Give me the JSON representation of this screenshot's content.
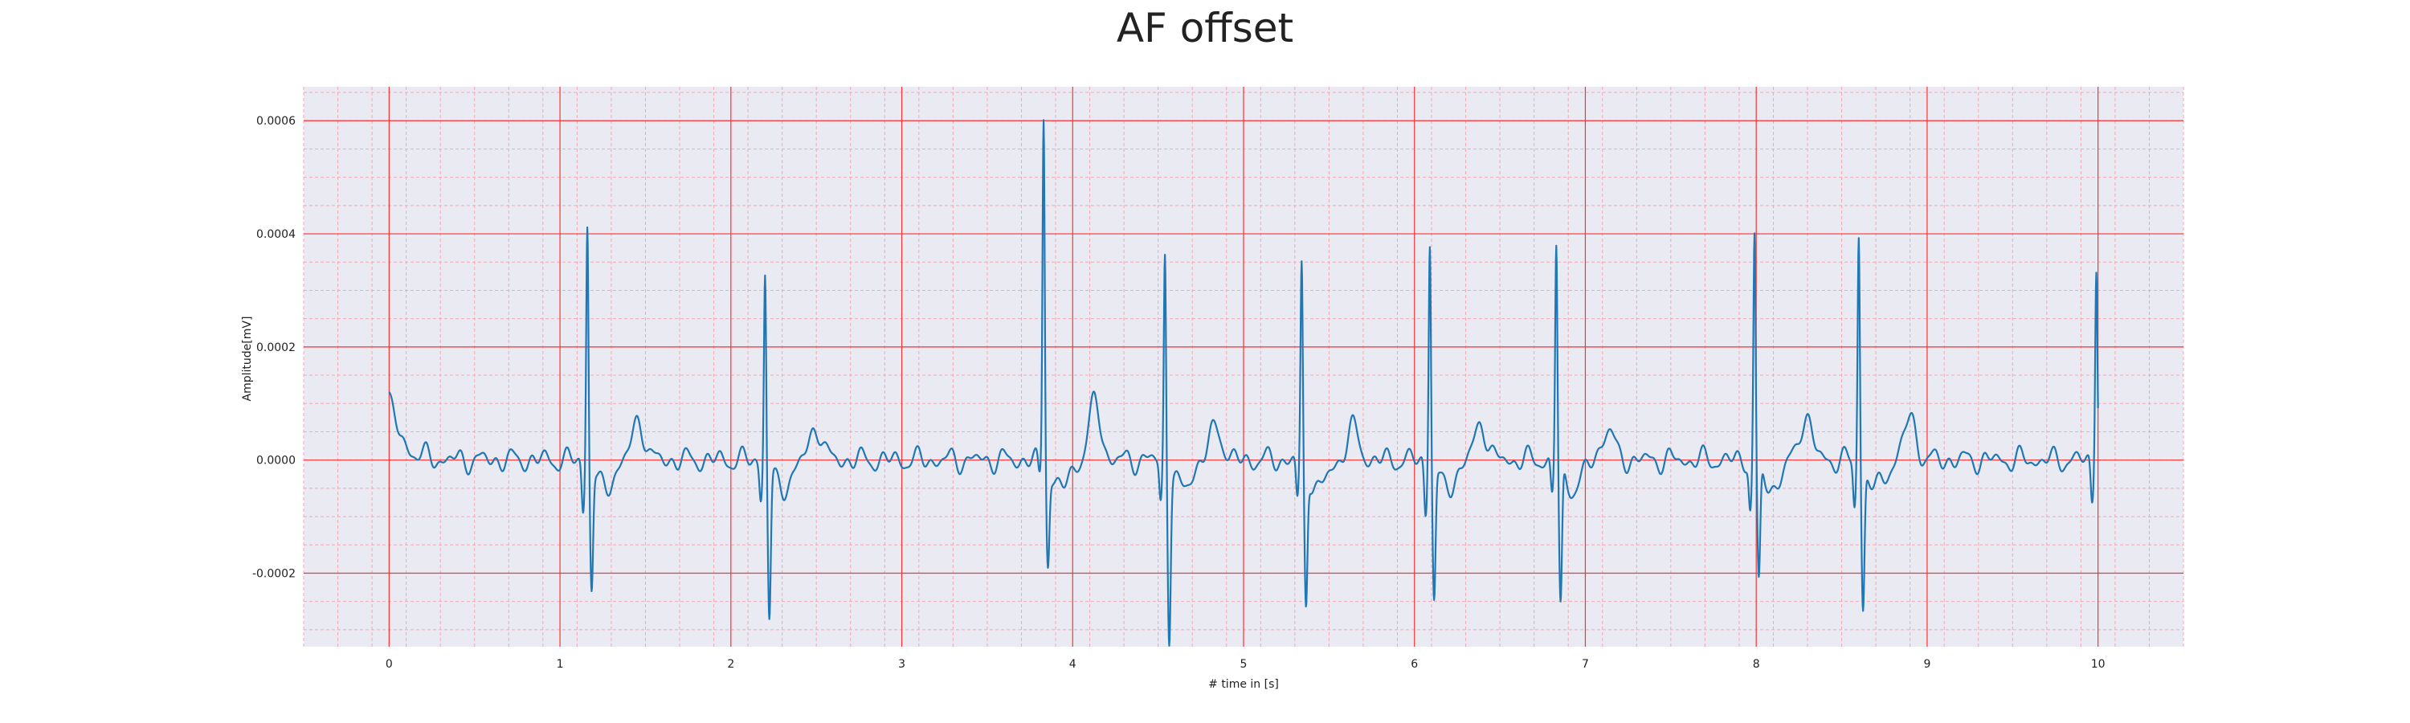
{
  "chart_data": {
    "type": "line",
    "title": "AF offset",
    "xlabel": "# time in [s]",
    "ylabel": "Amplitude[mV]",
    "xlim": [
      -0.5,
      10.5
    ],
    "ylim": [
      -0.00033,
      0.00066
    ],
    "x_ticks": [
      0,
      1,
      2,
      3,
      4,
      5,
      6,
      7,
      8,
      9,
      10
    ],
    "x_tick_labels": [
      "0",
      "1",
      "2",
      "3",
      "4",
      "5",
      "6",
      "7",
      "8",
      "9",
      "10"
    ],
    "y_ticks": [
      -0.0002,
      0.0,
      0.0002,
      0.0004,
      0.0006
    ],
    "y_tick_labels": [
      "-0.0002",
      "0.0000",
      "0.0002",
      "0.0004",
      "0.0006"
    ],
    "grid": true,
    "series": [
      {
        "color": "#1f77b4",
        "x_start": 0,
        "x_end": 10,
        "baseline_start": 0.00011,
        "beats": [
          {
            "t": 1.16,
            "r": 0.000415,
            "q": -8.5e-05,
            "s": -0.00021,
            "t_wave": 7e-05
          },
          {
            "t": 2.2,
            "r": 0.00033,
            "q": -6e-05,
            "s": -0.000265,
            "t_wave": 6e-05
          },
          {
            "t": 3.83,
            "r": 0.000612,
            "q": -3e-05,
            "s": -0.00016,
            "t_wave": 0.0001
          },
          {
            "t": 4.54,
            "r": 0.000365,
            "q": -7e-05,
            "s": -0.00029,
            "t_wave": 6e-05
          },
          {
            "t": 5.34,
            "r": 0.000335,
            "q": -7e-05,
            "s": -0.00024,
            "t_wave": 5.5e-05
          },
          {
            "t": 6.09,
            "r": 0.000385,
            "q": -9e-05,
            "s": -0.00023,
            "t_wave": 6.5e-05
          },
          {
            "t": 6.83,
            "r": 0.00038,
            "q": -6e-05,
            "s": -0.00025,
            "t_wave": 5.5e-05
          },
          {
            "t": 7.99,
            "r": 0.00039,
            "q": -8e-05,
            "s": -0.00021,
            "t_wave": 8e-05
          },
          {
            "t": 8.6,
            "r": 0.000395,
            "q": -8e-05,
            "s": -0.000245,
            "t_wave": 7.5e-05
          },
          {
            "t": 9.99,
            "r": 0.00034,
            "q": -7e-05,
            "s": 0.0,
            "t_wave": 0.0
          }
        ]
      }
    ],
    "colors": {
      "plot_background": "#eaeaf2",
      "major_grid": "#ff3030",
      "minor_grid": "#f4a8b4",
      "line": "#1f77b4"
    }
  }
}
